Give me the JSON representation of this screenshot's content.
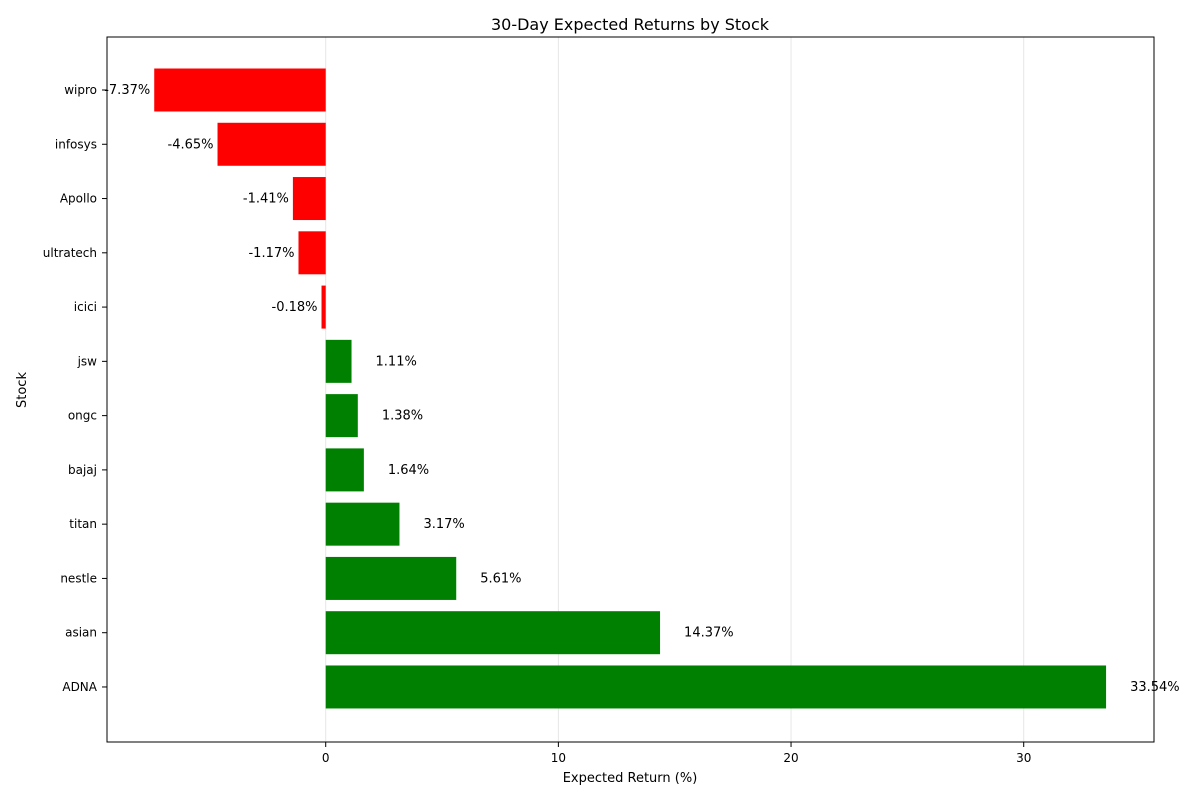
{
  "chart_data": {
    "type": "bar",
    "orientation": "horizontal",
    "title": "30-Day Expected Returns by Stock",
    "xlabel": "Expected Return (%)",
    "ylabel": "Stock",
    "xlim": [
      -9.4,
      35.6
    ],
    "xticks": [
      0,
      10,
      20,
      30
    ],
    "grid": "vertical",
    "legend": "none",
    "colors": {
      "positive": "#008000",
      "negative": "#ff0000"
    },
    "categories": [
      "wipro",
      "infosys",
      "Apollo",
      "ultratech",
      "icici",
      "jsw",
      "ongc",
      "bajaj",
      "titan",
      "nestle",
      "asian",
      "ADNA"
    ],
    "values": [
      -7.37,
      -4.65,
      -1.41,
      -1.17,
      -0.18,
      1.11,
      1.38,
      1.64,
      3.17,
      5.61,
      14.37,
      33.54
    ],
    "labels": [
      "-7.37%",
      "-4.65%",
      "-1.41%",
      "-1.17%",
      "-0.18%",
      "1.11%",
      "1.38%",
      "1.64%",
      "3.17%",
      "5.61%",
      "14.37%",
      "33.54%"
    ]
  }
}
